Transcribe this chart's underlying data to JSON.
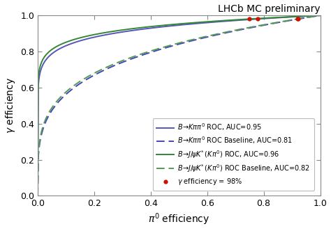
{
  "title": "LHCb MC preliminary",
  "xlabel": "$\\pi^0$ efficiency",
  "ylabel": "$\\gamma$ efficiency",
  "xlim": [
    0.0,
    1.0
  ],
  "ylim": [
    0.0,
    1.0
  ],
  "curves": [
    {
      "label": "$B\\!\\rightarrow\\!K\\pi\\pi^0$ ROC, AUC=0.95",
      "color": "#5555bb",
      "linestyle": "solid",
      "auc": 0.95,
      "shape_k": 0.08
    },
    {
      "label": "$B\\!\\rightarrow\\!K\\pi\\pi^0$ ROC Baseline, AUC=0.81",
      "color": "#4444bb",
      "linestyle": "dashed",
      "auc": 0.81,
      "shape_k": 0.25
    },
    {
      "label": "$B\\!\\rightarrow\\!J/\\!\\psi K^{*}\\,(K\\pi^0)$ ROC, AUC=0.96",
      "color": "#338833",
      "linestyle": "solid",
      "auc": 0.96,
      "shape_k": 0.07
    },
    {
      "label": "$B\\!\\rightarrow\\!J/\\!\\psi K^{*}\\,(K\\pi^0)$ ROC Baseline, AUC=0.82",
      "color": "#559955",
      "linestyle": "dashed",
      "auc": 0.82,
      "shape_k": 0.24
    }
  ],
  "gamma_eff": 0.98,
  "gamma_eff_label": "$\\gamma$ efficiency = 98%",
  "gamma_eff_color": "#cc1100",
  "background_color": "#ffffff",
  "legend_fontsize": 7.0,
  "axis_fontsize": 10,
  "tick_fontsize": 9
}
